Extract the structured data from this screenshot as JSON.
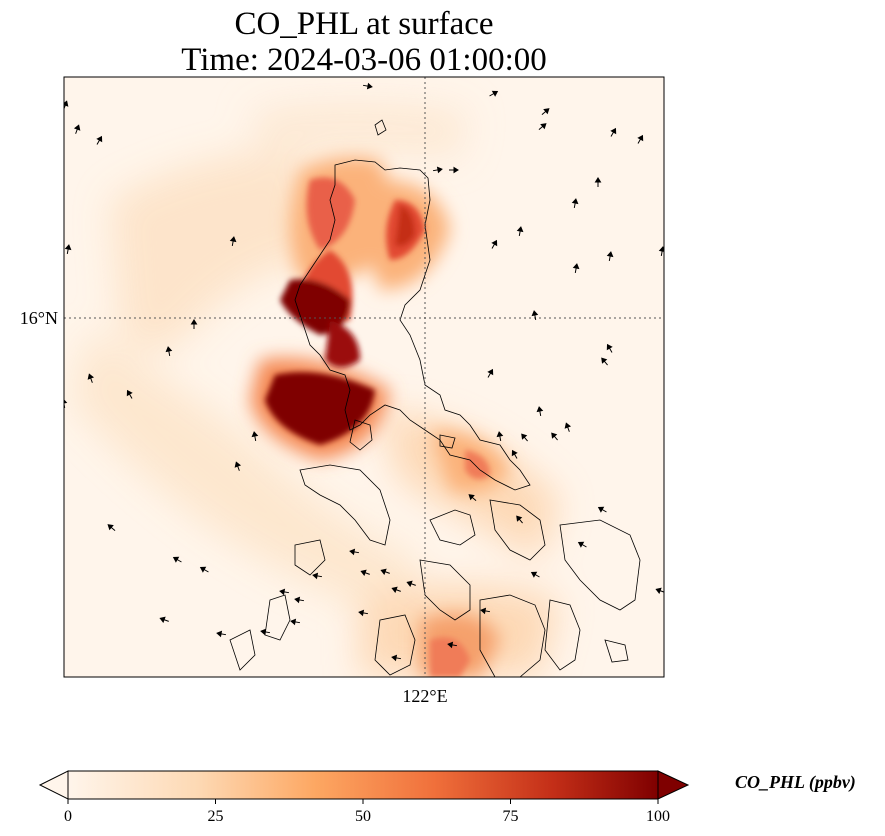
{
  "title": {
    "line1": "CO_PHL at surface",
    "line2": "Time: 2024-03-06 01:00:00"
  },
  "axes": {
    "lat_label": "16°N",
    "lon_label": "122°E"
  },
  "colorbar": {
    "title": "CO_PHL (ppbv)",
    "ticks": [
      "0",
      "25",
      "50",
      "75",
      "100"
    ],
    "min": 0,
    "max": 100,
    "extend": "both",
    "colors": [
      "#fff5eb",
      "#fdd9b4",
      "#fda762",
      "#f0703b",
      "#c42f18",
      "#7f0000"
    ]
  },
  "map": {
    "background_color": "#fff5eb",
    "coastline_color": "#000000",
    "gridline_style": "dotted",
    "wind_vectors": true
  }
}
